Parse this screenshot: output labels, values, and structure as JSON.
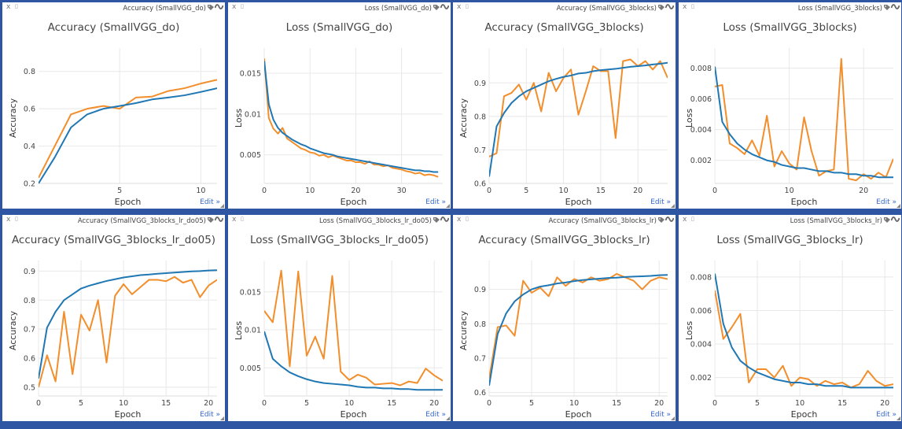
{
  "edit_label": "Edit »",
  "close_label": "x",
  "colors": {
    "train": "#f28e2b",
    "val": "#1f77b4",
    "background": "#2f56a3",
    "grid": "#e8e8e8"
  },
  "icons": {
    "tag": "tag-icon",
    "wave": "wave-icon",
    "pin": "pin-icon",
    "close": "close-icon"
  },
  "chart_data": [
    {
      "type": "line",
      "pane_name": "Accuracy (SmallVGG_do)",
      "title": "Accuracy (SmallVGG_do)",
      "xlabel": "Epoch",
      "ylabel": "Accuracy",
      "xlim": [
        0,
        11
      ],
      "ylim": [
        0.2,
        0.9
      ],
      "xticks": [
        5,
        10
      ],
      "yticks": [
        0.2,
        0.4,
        0.6,
        0.8
      ],
      "series": [
        {
          "color": "#f28e2b",
          "x": [
            0,
            1,
            2,
            3,
            4,
            5,
            6,
            7,
            8,
            9,
            10,
            11
          ],
          "values": [
            0.23,
            0.4,
            0.57,
            0.6,
            0.615,
            0.6,
            0.66,
            0.665,
            0.695,
            0.71,
            0.735,
            0.755
          ]
        },
        {
          "color": "#1f77b4",
          "x": [
            0,
            1,
            2,
            3,
            4,
            5,
            6,
            7,
            8,
            9,
            10,
            11
          ],
          "values": [
            0.2,
            0.34,
            0.5,
            0.57,
            0.6,
            0.615,
            0.63,
            0.65,
            0.66,
            0.672,
            0.69,
            0.71
          ]
        }
      ]
    },
    {
      "type": "line",
      "pane_name": "Loss (SmallVGG_do)",
      "title": "Loss (SmallVGG_do)",
      "xlabel": "Epoch",
      "ylabel": "Loss",
      "xlim": [
        0,
        39
      ],
      "ylim": [
        0.0015,
        0.0175
      ],
      "xticks": [
        0,
        10,
        20,
        30
      ],
      "yticks": [
        0.005,
        0.01,
        0.015
      ],
      "ytickLabels": [
        "0.005",
        "0.01",
        "0.015"
      ],
      "series": [
        {
          "color": "#f28e2b",
          "x": [
            0,
            1,
            2,
            3,
            4,
            5,
            6,
            7,
            8,
            9,
            10,
            11,
            12,
            13,
            14,
            15,
            16,
            17,
            18,
            19,
            20,
            21,
            22,
            23,
            24,
            25,
            26,
            27,
            28,
            29,
            30,
            31,
            32,
            33,
            34,
            35,
            36,
            37,
            38
          ],
          "values": [
            0.0168,
            0.0095,
            0.0082,
            0.0076,
            0.0083,
            0.007,
            0.0066,
            0.0062,
            0.0058,
            0.0056,
            0.0053,
            0.0052,
            0.0049,
            0.005,
            0.0047,
            0.0049,
            0.0047,
            0.0045,
            0.0043,
            0.0043,
            0.0041,
            0.0041,
            0.0039,
            0.0042,
            0.0038,
            0.0038,
            0.0036,
            0.0037,
            0.0034,
            0.0033,
            0.0032,
            0.003,
            0.0029,
            0.0027,
            0.0028,
            0.0025,
            0.0026,
            0.0025,
            0.0023
          ]
        },
        {
          "color": "#1f77b4",
          "x": [
            0,
            1,
            2,
            3,
            4,
            5,
            6,
            7,
            8,
            9,
            10,
            11,
            12,
            13,
            14,
            15,
            16,
            17,
            18,
            19,
            20,
            21,
            22,
            23,
            24,
            25,
            26,
            27,
            28,
            29,
            30,
            31,
            32,
            33,
            34,
            35,
            36,
            37,
            38
          ],
          "values": [
            0.0165,
            0.0112,
            0.0093,
            0.0083,
            0.0077,
            0.0073,
            0.0069,
            0.0066,
            0.0063,
            0.0061,
            0.0058,
            0.0056,
            0.0054,
            0.0052,
            0.0051,
            0.005,
            0.0048,
            0.0047,
            0.0046,
            0.0045,
            0.0044,
            0.0043,
            0.0042,
            0.0041,
            0.004,
            0.0039,
            0.0038,
            0.0037,
            0.0036,
            0.0035,
            0.0034,
            0.0033,
            0.0032,
            0.0031,
            0.0031,
            0.003,
            0.003,
            0.0029,
            0.0029
          ]
        }
      ]
    },
    {
      "type": "line",
      "pane_name": "Accuracy (SmallVGG_3blocks)",
      "title": "Accuracy (SmallVGG_3blocks)",
      "xlabel": "Epoch",
      "ylabel": "Accuracy",
      "xlim": [
        0,
        24
      ],
      "ylim": [
        0.6,
        0.99
      ],
      "xticks": [
        0,
        5,
        10,
        15,
        20
      ],
      "yticks": [
        0.6,
        0.7,
        0.8,
        0.9
      ],
      "series": [
        {
          "color": "#f28e2b",
          "x": [
            0,
            1,
            2,
            3,
            4,
            5,
            6,
            7,
            8,
            9,
            10,
            11,
            12,
            13,
            14,
            15,
            16,
            17,
            18,
            19,
            20,
            21,
            22,
            23,
            24
          ],
          "values": [
            0.68,
            0.69,
            0.86,
            0.87,
            0.895,
            0.85,
            0.9,
            0.815,
            0.93,
            0.875,
            0.915,
            0.94,
            0.805,
            0.875,
            0.95,
            0.935,
            0.935,
            0.735,
            0.965,
            0.97,
            0.95,
            0.965,
            0.94,
            0.965,
            0.915
          ]
        },
        {
          "color": "#1f77b4",
          "x": [
            0,
            1,
            2,
            3,
            4,
            5,
            6,
            7,
            8,
            9,
            10,
            11,
            12,
            13,
            14,
            15,
            16,
            17,
            18,
            19,
            20,
            21,
            22,
            23,
            24
          ],
          "values": [
            0.62,
            0.77,
            0.81,
            0.84,
            0.86,
            0.875,
            0.885,
            0.895,
            0.905,
            0.912,
            0.918,
            0.922,
            0.928,
            0.93,
            0.935,
            0.938,
            0.94,
            0.942,
            0.945,
            0.948,
            0.95,
            0.952,
            0.955,
            0.957,
            0.96
          ]
        }
      ]
    },
    {
      "type": "line",
      "pane_name": "Loss (SmallVGG_3blocks)",
      "title": "Loss (SmallVGG_3blocks)",
      "xlabel": "Epoch",
      "ylabel": "Loss",
      "xlim": [
        0,
        24
      ],
      "ylim": [
        0.0005,
        0.009
      ],
      "xticks": [
        0,
        10,
        20
      ],
      "yticks": [
        0.002,
        0.004,
        0.006,
        0.008
      ],
      "ytickLabels": [
        "0.002",
        "0.004",
        "0.006",
        "0.008"
      ],
      "series": [
        {
          "color": "#f28e2b",
          "x": [
            0,
            1,
            2,
            3,
            4,
            5,
            6,
            7,
            8,
            9,
            10,
            11,
            12,
            13,
            14,
            15,
            16,
            17,
            18,
            19,
            20,
            21,
            22,
            23,
            24
          ],
          "values": [
            0.0068,
            0.0069,
            0.0031,
            0.0028,
            0.0024,
            0.0033,
            0.0023,
            0.0049,
            0.0016,
            0.0026,
            0.0018,
            0.0014,
            0.0048,
            0.0026,
            0.001,
            0.0013,
            0.0014,
            0.0086,
            0.0008,
            0.0007,
            0.0011,
            0.0008,
            0.0012,
            0.0009,
            0.0021
          ]
        },
        {
          "color": "#1f77b4",
          "x": [
            0,
            1,
            2,
            3,
            4,
            5,
            6,
            7,
            8,
            9,
            10,
            11,
            12,
            13,
            14,
            15,
            16,
            17,
            18,
            19,
            20,
            21,
            22,
            23,
            24
          ],
          "values": [
            0.0081,
            0.0045,
            0.0037,
            0.0031,
            0.0027,
            0.0024,
            0.0022,
            0.002,
            0.0019,
            0.0017,
            0.0016,
            0.0015,
            0.0015,
            0.0014,
            0.0013,
            0.0013,
            0.0012,
            0.0012,
            0.0011,
            0.0011,
            0.001,
            0.001,
            0.0009,
            0.0009,
            0.0009
          ]
        }
      ]
    },
    {
      "type": "line",
      "pane_name": "Accuracy (SmallVGG_3blocks_lr_do05)",
      "title": "Accuracy (SmallVGG_3blocks_lr_do05)",
      "xlabel": "Epoch",
      "ylabel": "Accuracy",
      "xlim": [
        0,
        21
      ],
      "ylim": [
        0.47,
        0.92
      ],
      "xticks": [
        0,
        5,
        10,
        15,
        20
      ],
      "yticks": [
        0.5,
        0.6,
        0.7,
        0.8,
        0.9
      ],
      "series": [
        {
          "color": "#f28e2b",
          "x": [
            0,
            1,
            2,
            3,
            4,
            5,
            6,
            7,
            8,
            9,
            10,
            11,
            12,
            13,
            14,
            15,
            16,
            17,
            18,
            19,
            20,
            21
          ],
          "values": [
            0.5,
            0.61,
            0.52,
            0.76,
            0.545,
            0.75,
            0.695,
            0.8,
            0.585,
            0.815,
            0.855,
            0.82,
            0.845,
            0.87,
            0.87,
            0.865,
            0.88,
            0.86,
            0.87,
            0.81,
            0.85,
            0.87
          ]
        },
        {
          "color": "#1f77b4",
          "x": [
            0,
            1,
            2,
            3,
            4,
            5,
            6,
            7,
            8,
            9,
            10,
            11,
            12,
            13,
            14,
            15,
            16,
            17,
            18,
            19,
            20,
            21
          ],
          "values": [
            0.53,
            0.705,
            0.76,
            0.8,
            0.82,
            0.84,
            0.85,
            0.858,
            0.866,
            0.872,
            0.878,
            0.882,
            0.886,
            0.888,
            0.891,
            0.893,
            0.895,
            0.897,
            0.899,
            0.9,
            0.902,
            0.903
          ]
        }
      ]
    },
    {
      "type": "line",
      "pane_name": "Loss (SmallVGG_3blocks_lr_do05)",
      "title": "Loss (SmallVGG_3blocks_lr_do05)",
      "xlabel": "Epoch",
      "ylabel": "Loss",
      "xlim": [
        0,
        21
      ],
      "ylim": [
        0.0013,
        0.0185
      ],
      "xticks": [
        0,
        5,
        10,
        15,
        20
      ],
      "yticks": [
        0.005,
        0.01,
        0.015
      ],
      "ytickLabels": [
        "0.005",
        "0.01",
        "0.015"
      ],
      "series": [
        {
          "color": "#f28e2b",
          "x": [
            0,
            1,
            2,
            3,
            4,
            5,
            6,
            7,
            8,
            9,
            10,
            11,
            12,
            13,
            14,
            15,
            16,
            17,
            18,
            19,
            20,
            21
          ],
          "values": [
            0.0125,
            0.011,
            0.0178,
            0.0052,
            0.0177,
            0.0066,
            0.0091,
            0.0062,
            0.0171,
            0.0045,
            0.0034,
            0.0041,
            0.0037,
            0.0028,
            0.0029,
            0.003,
            0.0027,
            0.0032,
            0.003,
            0.0049,
            0.004,
            0.0033
          ]
        },
        {
          "color": "#1f77b4",
          "x": [
            0,
            1,
            2,
            3,
            4,
            5,
            6,
            7,
            8,
            9,
            10,
            11,
            12,
            13,
            14,
            15,
            16,
            17,
            18,
            19,
            20,
            21
          ],
          "values": [
            0.0098,
            0.0062,
            0.0052,
            0.0044,
            0.0039,
            0.0035,
            0.0032,
            0.003,
            0.0029,
            0.0028,
            0.0027,
            0.0025,
            0.0024,
            0.0024,
            0.0023,
            0.0023,
            0.0022,
            0.0022,
            0.0021,
            0.0021,
            0.0021,
            0.0021
          ]
        }
      ]
    },
    {
      "type": "line",
      "pane_name": "Accuracy (SmallVGG_3blocks_lr)",
      "title": "Accuracy (SmallVGG_3blocks_lr)",
      "xlabel": "Epoch",
      "ylabel": "Accuracy",
      "xlim": [
        0,
        21
      ],
      "ylim": [
        0.59,
        0.97
      ],
      "xticks": [
        0,
        5,
        10,
        15,
        20
      ],
      "yticks": [
        0.6,
        0.7,
        0.8,
        0.9
      ],
      "series": [
        {
          "color": "#f28e2b",
          "x": [
            0,
            1,
            2,
            3,
            4,
            5,
            6,
            7,
            8,
            9,
            10,
            11,
            12,
            13,
            14,
            15,
            16,
            17,
            18,
            19,
            20,
            21
          ],
          "values": [
            0.64,
            0.79,
            0.795,
            0.765,
            0.925,
            0.89,
            0.905,
            0.88,
            0.935,
            0.91,
            0.93,
            0.92,
            0.935,
            0.925,
            0.93,
            0.945,
            0.935,
            0.925,
            0.9,
            0.925,
            0.935,
            0.93
          ]
        },
        {
          "color": "#1f77b4",
          "x": [
            0,
            1,
            2,
            3,
            4,
            5,
            6,
            7,
            8,
            9,
            10,
            11,
            12,
            13,
            14,
            15,
            16,
            17,
            18,
            19,
            20,
            21
          ],
          "values": [
            0.62,
            0.77,
            0.83,
            0.865,
            0.885,
            0.9,
            0.908,
            0.912,
            0.917,
            0.92,
            0.924,
            0.927,
            0.929,
            0.931,
            0.933,
            0.934,
            0.936,
            0.937,
            0.938,
            0.939,
            0.941,
            0.942
          ]
        }
      ]
    },
    {
      "type": "line",
      "pane_name": "Loss (SmallVGG_3blocks_lr)",
      "title": "Loss (SmallVGG_3blocks_lr)",
      "xlabel": "Epoch",
      "ylabel": "Loss",
      "xlim": [
        0,
        21
      ],
      "ylim": [
        0.0009,
        0.0087
      ],
      "xticks": [
        0,
        5,
        10,
        15,
        20
      ],
      "yticks": [
        0.002,
        0.004,
        0.006,
        0.008
      ],
      "ytickLabels": [
        "0.002",
        "0.004",
        "0.006",
        "0.008"
      ],
      "series": [
        {
          "color": "#f28e2b",
          "x": [
            0,
            1,
            2,
            3,
            4,
            5,
            6,
            7,
            8,
            9,
            10,
            11,
            12,
            13,
            14,
            15,
            16,
            17,
            18,
            19,
            20,
            21
          ],
          "values": [
            0.0072,
            0.0043,
            0.005,
            0.0058,
            0.0017,
            0.0025,
            0.0025,
            0.002,
            0.0027,
            0.0015,
            0.002,
            0.0019,
            0.0015,
            0.0018,
            0.0016,
            0.0017,
            0.0014,
            0.0016,
            0.0024,
            0.0018,
            0.0015,
            0.0016
          ]
        },
        {
          "color": "#1f77b4",
          "x": [
            0,
            1,
            2,
            3,
            4,
            5,
            6,
            7,
            8,
            9,
            10,
            11,
            12,
            13,
            14,
            15,
            16,
            17,
            18,
            19,
            20,
            21
          ],
          "values": [
            0.0082,
            0.0052,
            0.0038,
            0.003,
            0.0026,
            0.0023,
            0.0021,
            0.0019,
            0.0018,
            0.0017,
            0.0017,
            0.0016,
            0.0016,
            0.0015,
            0.0015,
            0.0015,
            0.0014,
            0.0014,
            0.0014,
            0.0014,
            0.0014,
            0.0014
          ]
        }
      ]
    }
  ]
}
